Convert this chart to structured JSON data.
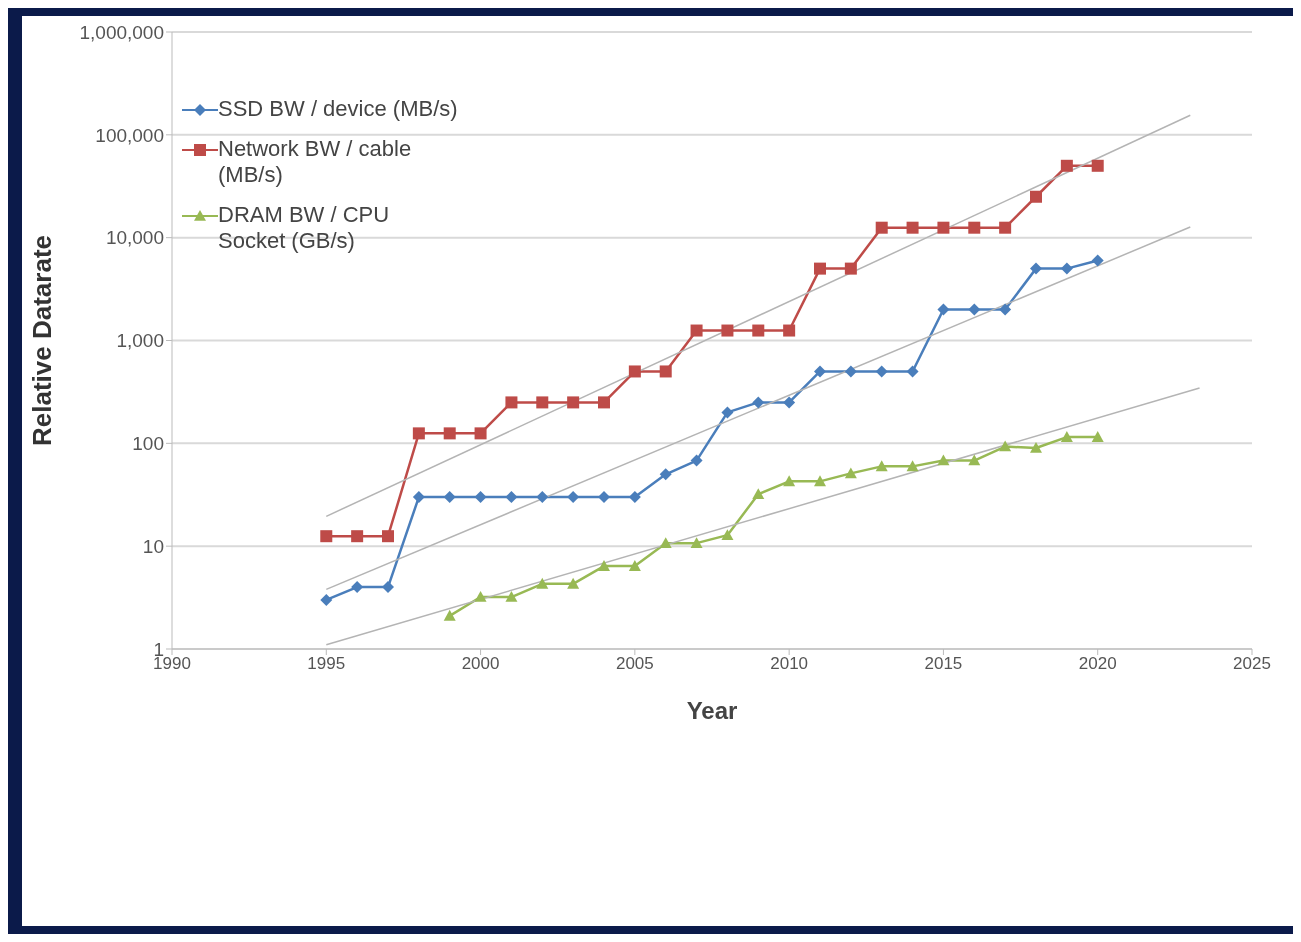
{
  "chart_data": {
    "type": "line",
    "xlabel": "Year",
    "ylabel": "Relative Datarate",
    "log": "y",
    "grid": "y",
    "legend": "top left",
    "xlim": [
      1990,
      2025
    ],
    "xticks": [
      1990,
      1995,
      2000,
      2005,
      2010,
      2015,
      2020,
      2025
    ],
    "ylim": [
      1,
      1000000
    ],
    "yticks": [
      1,
      10,
      100,
      {
        "value": 1000,
        "label": "1,000"
      },
      {
        "value": 10000,
        "label": "10,000"
      },
      {
        "value": 100000,
        "label": "100,000"
      },
      {
        "value": 1000000,
        "label": "1,000,000"
      }
    ],
    "series": [
      {
        "name": "SSD BW / device (MB/s)",
        "color": "#4a7ebb",
        "marker": "diamond",
        "x": [
          1995,
          1996,
          1997,
          1998,
          1999,
          2000,
          2001,
          2002,
          2003,
          2004,
          2005,
          2006,
          2007,
          2008,
          2009,
          2010,
          2011,
          2012,
          2013,
          2014,
          2015,
          2016,
          2017,
          2018,
          2019,
          2020
        ],
        "values": [
          3,
          4,
          4,
          30,
          30,
          30,
          30,
          30,
          30,
          30,
          30,
          50,
          68,
          200,
          250,
          250,
          500,
          500,
          500,
          500,
          2000,
          2000,
          2000,
          5000,
          5000,
          6000
        ]
      },
      {
        "name": "Network BW / cable (MB/s)",
        "color": "#be4b48",
        "marker": "square",
        "x": [
          1995,
          1996,
          1997,
          1998,
          1999,
          2000,
          2001,
          2002,
          2003,
          2004,
          2005,
          2006,
          2007,
          2008,
          2009,
          2010,
          2011,
          2012,
          2013,
          2014,
          2015,
          2016,
          2017,
          2018,
          2019,
          2020
        ],
        "values": [
          12.5,
          12.5,
          12.5,
          125,
          125,
          125,
          250,
          250,
          250,
          250,
          500,
          500,
          1250,
          1250,
          1250,
          1250,
          5000,
          5000,
          12500,
          12500,
          12500,
          12500,
          12500,
          25000,
          50000,
          50000
        ]
      },
      {
        "name": "DRAM BW / CPU Socket (GB/s)",
        "color": "#98b954",
        "marker": "triangle",
        "x": [
          1999,
          2000,
          2001,
          2002,
          2003,
          2004,
          2005,
          2006,
          2007,
          2008,
          2009,
          2010,
          2011,
          2012,
          2013,
          2014,
          2015,
          2016,
          2017,
          2018,
          2019,
          2020
        ],
        "values": [
          2.1,
          3.2,
          3.2,
          4.3,
          4.3,
          6.4,
          6.4,
          10.7,
          10.7,
          12.8,
          32,
          42.7,
          42.7,
          51,
          59.7,
          59.7,
          68,
          68,
          93,
          90,
          115,
          115
        ]
      },
      {
        "type": "line",
        "color": "#b4b4b4",
        "marker": "none",
        "x": [
          1995,
          2023
        ],
        "values": [
          19.5,
          155000
        ]
      },
      {
        "type": "line",
        "color": "#b4b4b4",
        "marker": "none",
        "x": [
          1995,
          2023
        ],
        "values": [
          3.8,
          12700
        ]
      },
      {
        "type": "line",
        "color": "#b4b4b4",
        "marker": "none",
        "x": [
          1995,
          2023.3
        ],
        "values": [
          1.1,
          345
        ]
      }
    ]
  }
}
